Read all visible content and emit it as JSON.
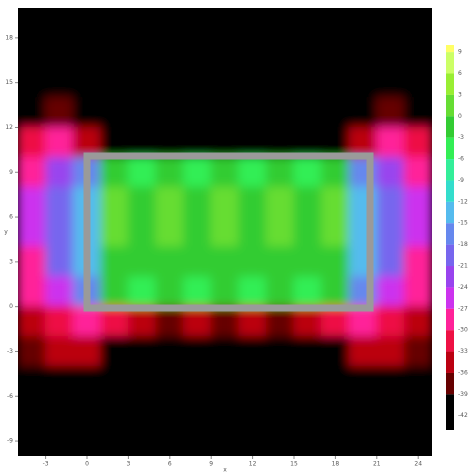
{
  "chart_data": {
    "type": "contour",
    "x_label": "x",
    "y_label": "y",
    "x": [
      -4,
      -2,
      0,
      2,
      4,
      6,
      8,
      10,
      12,
      14,
      16,
      18,
      20,
      22,
      24
    ],
    "y": [
      19,
      17,
      15,
      13,
      11,
      9,
      7,
      5,
      3,
      1,
      -1,
      -3,
      -5,
      -7,
      -9
    ],
    "z": [
      [
        -44,
        -44,
        -44,
        -44,
        -44,
        -44,
        -44,
        -44,
        -44,
        -44,
        -44,
        -44,
        -44,
        -44,
        -44
      ],
      [
        -44,
        -44,
        -44,
        -44,
        -44,
        -44,
        -44,
        -44,
        -44,
        -44,
        -44,
        -44,
        -44,
        -44,
        -44
      ],
      [
        -44,
        -44,
        -44,
        -44,
        -44,
        -44,
        -44,
        -44,
        -44,
        -44,
        -44,
        -44,
        -44,
        -44,
        -44
      ],
      [
        -40,
        -38,
        -42,
        -44,
        -44,
        -44,
        -44,
        -44,
        -44,
        -44,
        -44,
        -44,
        -40,
        -38,
        -40
      ],
      [
        -32,
        -30,
        -34,
        -40,
        -42,
        -42,
        -42,
        -42,
        -42,
        -42,
        -42,
        -40,
        -34,
        -30,
        -32
      ],
      [
        -28,
        -24,
        -16,
        -2,
        -4,
        -2,
        -4,
        -2,
        -4,
        -2,
        -4,
        -2,
        -16,
        -24,
        -28
      ],
      [
        -27,
        -20,
        -14,
        0,
        -3,
        0,
        -3,
        0,
        -3,
        0,
        -3,
        0,
        -14,
        -20,
        -27
      ],
      [
        -27,
        -19,
        -14,
        0,
        -3,
        0,
        -3,
        0,
        -3,
        0,
        -3,
        0,
        -14,
        -19,
        -27
      ],
      [
        -28,
        -21,
        -15,
        -1,
        -3,
        -1,
        -3,
        -1,
        -3,
        -1,
        -3,
        -1,
        -15,
        -21,
        -28
      ],
      [
        -30,
        -26,
        -17,
        -3,
        -5,
        -3,
        -5,
        -3,
        -5,
        -3,
        -5,
        -3,
        -17,
        -26,
        -30
      ],
      [
        -34,
        -31,
        -30,
        -33,
        -36,
        -37,
        -36,
        -37,
        -36,
        -37,
        -36,
        -33,
        -30,
        -31,
        -34
      ],
      [
        -38,
        -35,
        -36,
        -40,
        -42,
        -43,
        -43,
        -43,
        -43,
        -43,
        -42,
        -40,
        -36,
        -35,
        -38
      ],
      [
        -42,
        -40,
        -42,
        -44,
        -44,
        -44,
        -44,
        -44,
        -44,
        -44,
        -44,
        -44,
        -42,
        -40,
        -42
      ],
      [
        -44,
        -44,
        -44,
        -44,
        -44,
        -44,
        -44,
        -44,
        -44,
        -44,
        -44,
        -44,
        -44,
        -44,
        -44
      ],
      [
        -44,
        -44,
        -44,
        -44,
        -44,
        -44,
        -44,
        -44,
        -44,
        -44,
        -44,
        -44,
        -44,
        -44,
        -44
      ]
    ],
    "xlim": [
      -5,
      25
    ],
    "ylim": [
      -10,
      20
    ],
    "xticks": [
      -3,
      0,
      3,
      6,
      9,
      12,
      15,
      18,
      21,
      24
    ],
    "yticks": [
      -9,
      -6,
      -3,
      0,
      3,
      6,
      9,
      12,
      15,
      18
    ],
    "zlim": [
      -44,
      10
    ],
    "levels": [
      9,
      6,
      3,
      0,
      -3,
      -6,
      -9,
      -12,
      -15,
      -18,
      -21,
      -24,
      -27,
      -30,
      -33,
      -36,
      -39,
      -42
    ],
    "level_colors": [
      "#ffff66",
      "#ccff66",
      "#99ee33",
      "#66dd33",
      "#33cc33",
      "#33ee55",
      "#33ee99",
      "#33ddcc",
      "#55bbee",
      "#6688ee",
      "#7766ee",
      "#9944ee",
      "#cc33ee",
      "#ff2299",
      "#ee1144",
      "#bb0011",
      "#660000",
      "#000000"
    ]
  }
}
